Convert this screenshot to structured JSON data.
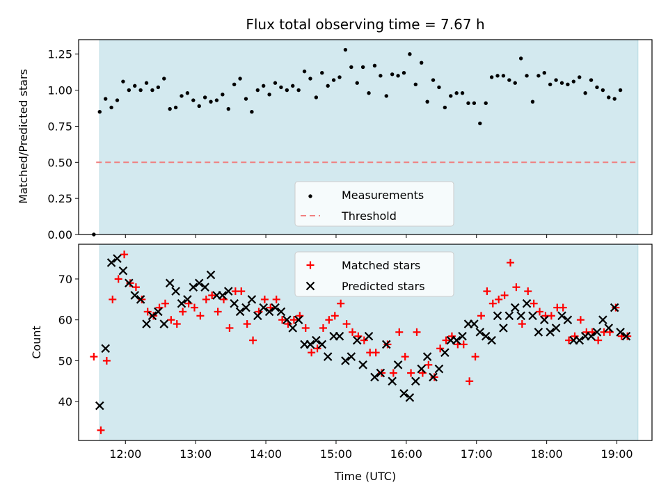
{
  "colors": {
    "shade": "#d3e9ef",
    "shade_edge": "#b9dbe3",
    "measurement": "#000000",
    "threshold": "#f08080",
    "matched": "#ff0000",
    "predicted": "#000000"
  },
  "chart_data": [
    {
      "type": "scatter",
      "title": "Flux total observing time = 7.67 h",
      "xlabel": "",
      "ylabel": "Matched/Predicted stars",
      "xlim": [
        "11:20",
        "19:30"
      ],
      "ylim": [
        0,
        1.35
      ],
      "x_ticks": [
        "12:00",
        "13:00",
        "14:00",
        "15:00",
        "16:00",
        "17:00",
        "18:00",
        "19:00"
      ],
      "y_ticks": [
        "0.00",
        "0.25",
        "0.50",
        "0.75",
        "1.00",
        "1.25"
      ],
      "y_tick_values": [
        0,
        0.25,
        0.5,
        0.75,
        1.0,
        1.25
      ],
      "shaded_span": [
        "11:38",
        "19:18"
      ],
      "threshold": 0.5,
      "legend": [
        "Measurements",
        "Threshold"
      ],
      "legend_position": "lower-center",
      "series": [
        {
          "name": "Measurements",
          "x_minutes_from_11": [
            33,
            38,
            43,
            48,
            53,
            58,
            63,
            68,
            73,
            78,
            83,
            88,
            93,
            98,
            103,
            108,
            113,
            118,
            123,
            128,
            133,
            138,
            143,
            148,
            153,
            158,
            163,
            168,
            173,
            178,
            183,
            188,
            193,
            198,
            203,
            208,
            213,
            218,
            223,
            228,
            233,
            238,
            243,
            248,
            253,
            258,
            263,
            268,
            273,
            278,
            283,
            288,
            293,
            298,
            303,
            308,
            313,
            318,
            323,
            328,
            333,
            338,
            343,
            348,
            353,
            358,
            363,
            368,
            373,
            378,
            383,
            388,
            393,
            398,
            403,
            408,
            413,
            418,
            423,
            428,
            433,
            438,
            443,
            448,
            453,
            458,
            463,
            468,
            473,
            478,
            483
          ],
          "values": [
            0.0,
            0.85,
            0.94,
            0.88,
            0.93,
            1.06,
            1.0,
            1.03,
            1.0,
            1.05,
            1.0,
            1.02,
            1.08,
            0.87,
            0.88,
            0.96,
            0.98,
            0.93,
            0.89,
            0.95,
            0.92,
            0.93,
            0.97,
            0.87,
            1.04,
            1.08,
            0.94,
            0.85,
            1.0,
            1.03,
            0.97,
            1.05,
            1.02,
            1.0,
            1.03,
            1.0,
            1.13,
            1.08,
            0.95,
            1.12,
            1.03,
            1.07,
            1.09,
            1.28,
            1.16,
            1.05,
            1.16,
            0.98,
            1.17,
            1.1,
            0.96,
            1.11,
            1.1,
            1.12,
            1.25,
            1.04,
            1.19,
            0.92,
            1.07,
            1.02,
            0.88,
            0.96,
            0.98,
            0.98,
            0.91,
            0.91,
            0.77,
            0.91,
            1.09,
            1.1,
            1.1,
            1.07,
            1.05,
            1.22,
            1.1,
            0.92,
            1.1,
            1.12,
            1.04,
            1.07,
            1.05,
            1.04,
            1.06,
            1.09,
            0.98,
            1.07,
            1.02,
            1.0,
            0.95,
            0.94,
            1.0
          ]
        }
      ]
    },
    {
      "type": "scatter",
      "title": "",
      "xlabel": "Time (UTC)",
      "ylabel": "Count",
      "xlim": [
        "11:20",
        "19:30"
      ],
      "ylim": [
        30.5,
        78.5
      ],
      "x_ticks": [
        "12:00",
        "13:00",
        "14:00",
        "15:00",
        "16:00",
        "17:00",
        "18:00",
        "19:00"
      ],
      "y_ticks": [
        "40",
        "50",
        "60",
        "70"
      ],
      "y_tick_values": [
        40,
        50,
        60,
        70
      ],
      "shaded_span": [
        "11:38",
        "19:18"
      ],
      "legend": [
        "Matched stars",
        "Predicted stars"
      ],
      "legend_position": "upper-center",
      "series": [
        {
          "name": "Matched stars",
          "marker": "plus",
          "x_minutes_from_11": [
            33,
            39,
            44,
            49,
            54,
            59,
            64,
            69,
            74,
            79,
            84,
            89,
            94,
            99,
            104,
            109,
            114,
            119,
            124,
            129,
            134,
            139,
            144,
            149,
            154,
            159,
            164,
            169,
            174,
            179,
            184,
            189,
            194,
            199,
            204,
            209,
            214,
            219,
            224,
            229,
            234,
            239,
            244,
            249,
            254,
            259,
            264,
            269,
            274,
            279,
            284,
            289,
            294,
            299,
            304,
            309,
            314,
            319,
            324,
            329,
            334,
            339,
            344,
            349,
            354,
            359,
            364,
            369,
            374,
            379,
            384,
            389,
            394,
            399,
            404,
            409,
            414,
            419,
            424,
            429,
            434,
            439,
            444,
            449,
            454,
            459,
            464,
            469,
            474,
            479,
            484,
            489
          ],
          "values": [
            51,
            33,
            50,
            65,
            70,
            76,
            69,
            68,
            65,
            62,
            61,
            63,
            64,
            60,
            59,
            62,
            64,
            63,
            61,
            65,
            66,
            62,
            65,
            58,
            67,
            67,
            59,
            55,
            62,
            65,
            63,
            65,
            60,
            59,
            60,
            61,
            58,
            52,
            53,
            58,
            60,
            61,
            64,
            59,
            57,
            56,
            55,
            52,
            52,
            47,
            54,
            47,
            57,
            51,
            47,
            57,
            47,
            49,
            46,
            53,
            55,
            56,
            54,
            54,
            45,
            51,
            61,
            67,
            64,
            65,
            66,
            74,
            68,
            59,
            67,
            64,
            62,
            61,
            61,
            63,
            63,
            55,
            56,
            60,
            57,
            57,
            55,
            57,
            57,
            63,
            56,
            56
          ]
        },
        {
          "name": "Predicted stars",
          "marker": "x",
          "x_minutes_from_11": [
            38,
            43,
            48,
            53,
            58,
            63,
            68,
            73,
            78,
            83,
            88,
            93,
            98,
            103,
            108,
            113,
            118,
            123,
            128,
            133,
            138,
            143,
            148,
            153,
            158,
            163,
            168,
            173,
            178,
            183,
            188,
            193,
            198,
            203,
            208,
            213,
            218,
            223,
            228,
            233,
            238,
            243,
            248,
            253,
            258,
            263,
            268,
            273,
            278,
            283,
            288,
            293,
            298,
            303,
            308,
            313,
            318,
            323,
            328,
            333,
            338,
            343,
            348,
            353,
            358,
            363,
            368,
            373,
            378,
            383,
            388,
            393,
            398,
            403,
            408,
            413,
            418,
            423,
            428,
            433,
            438,
            443,
            448,
            453,
            458,
            463,
            468,
            473,
            478,
            483,
            488
          ],
          "values": [
            39,
            53,
            74,
            75,
            72,
            69,
            66,
            65,
            59,
            61,
            62,
            59,
            69,
            67,
            64,
            65,
            68,
            69,
            68,
            71,
            66,
            66,
            67,
            64,
            62,
            63,
            65,
            61,
            63,
            62,
            63,
            62,
            60,
            58,
            60,
            54,
            54,
            55,
            54,
            51,
            56,
            56,
            50,
            51,
            55,
            49,
            56,
            46,
            47,
            54,
            45,
            49,
            42,
            41,
            45,
            48,
            51,
            46,
            48,
            52,
            55,
            55,
            56,
            59,
            59,
            57,
            56,
            55,
            61,
            58,
            61,
            63,
            61,
            64,
            61,
            57,
            60,
            57,
            58,
            61,
            60,
            55,
            55,
            56,
            56,
            57,
            60,
            58,
            63,
            57,
            56
          ]
        }
      ]
    }
  ]
}
